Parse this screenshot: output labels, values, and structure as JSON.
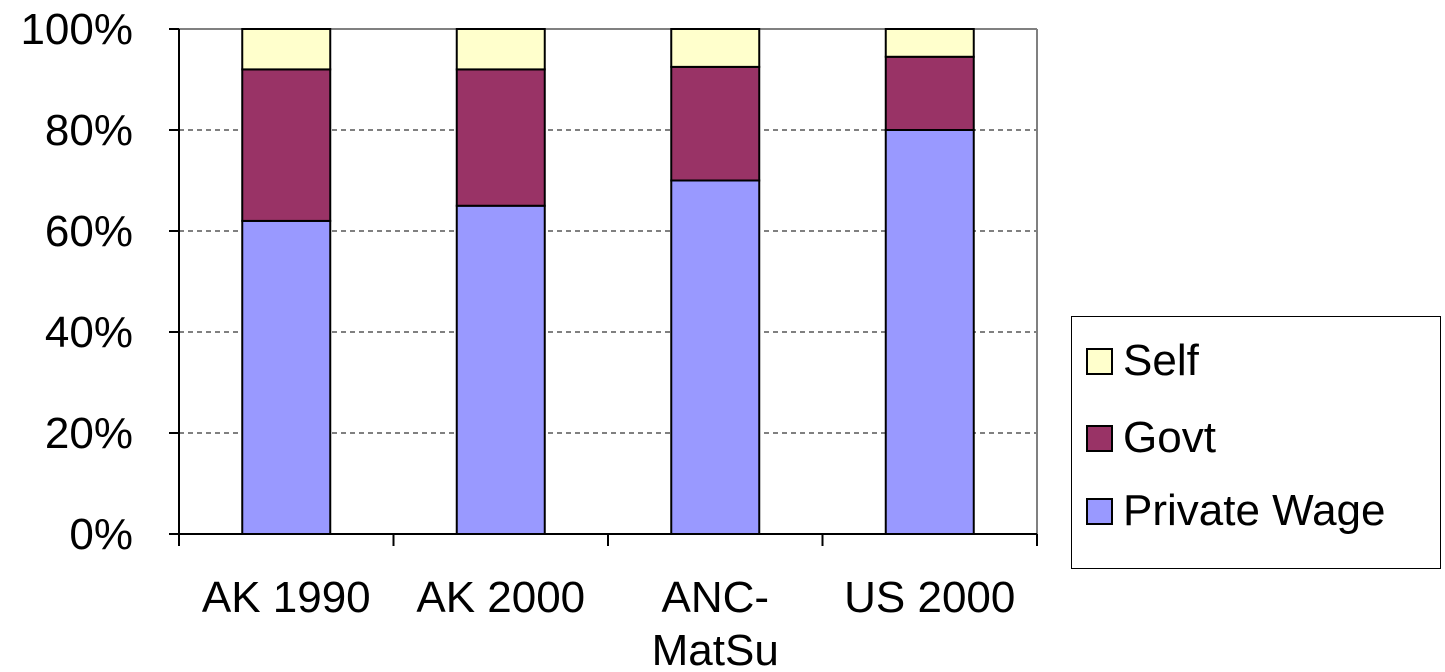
{
  "chart_data": {
    "type": "bar",
    "stacked": true,
    "categories": [
      "AK 1990",
      "AK 2000",
      "ANC-MatSu",
      "US 2000"
    ],
    "category_lines": [
      [
        "AK 1990"
      ],
      [
        "AK 2000"
      ],
      [
        "ANC-",
        "MatSu"
      ],
      [
        "US 2000"
      ]
    ],
    "series": [
      {
        "name": "Private Wage",
        "values": [
          62,
          65,
          70,
          80
        ],
        "color": "#9999ff"
      },
      {
        "name": "Govt",
        "values": [
          30,
          27,
          22.5,
          14.5
        ],
        "color": "#993366"
      },
      {
        "name": "Self",
        "values": [
          8,
          8,
          7.5,
          5.5
        ],
        "color": "#ffffcc"
      }
    ],
    "y_ticks": [
      "0%",
      "20%",
      "40%",
      "60%",
      "80%",
      "100%"
    ],
    "ylim": [
      0,
      100
    ],
    "grid": true,
    "legend_position": "right",
    "title": "",
    "xlabel": "",
    "ylabel": ""
  },
  "legend": {
    "items": [
      {
        "label": "Self",
        "color": "#ffffcc"
      },
      {
        "label": "Govt",
        "color": "#993366"
      },
      {
        "label": "Private Wage",
        "color": "#9999ff"
      }
    ]
  }
}
